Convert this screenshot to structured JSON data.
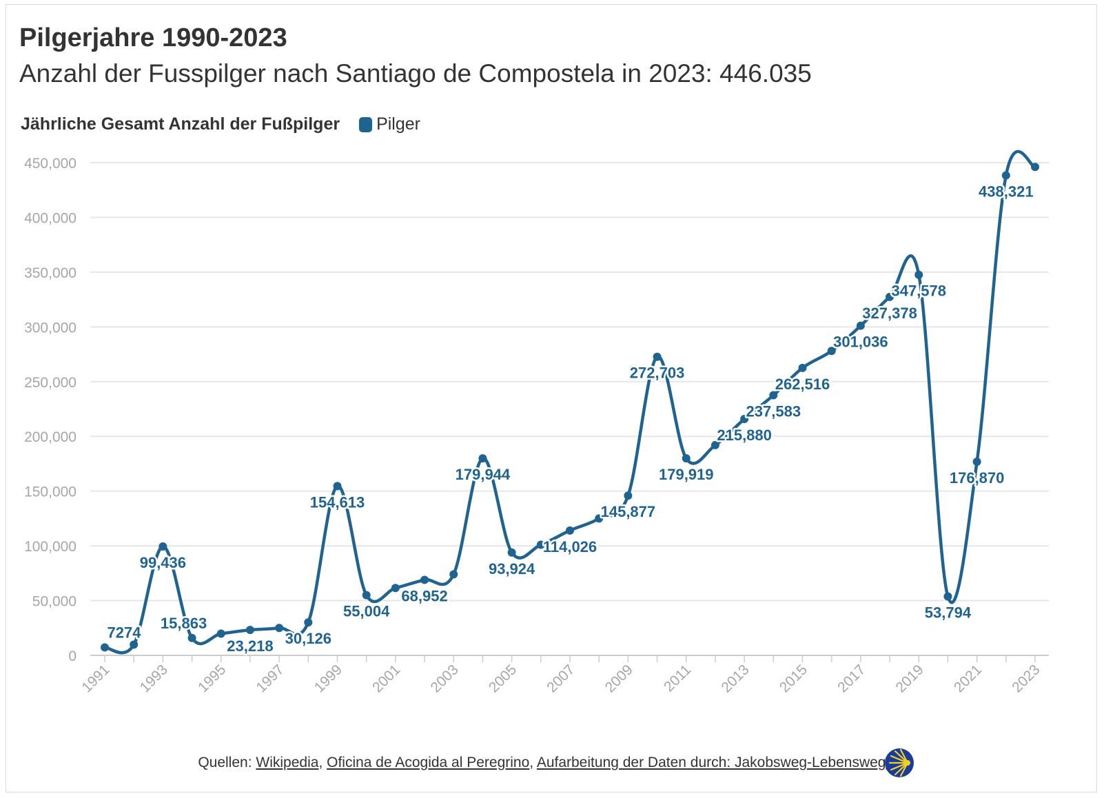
{
  "title": "Pilgerjahre 1990-2023",
  "subtitle": "Anzahl der Fusspilger nach Santiago de Compostela in 2023: 446.035",
  "legend": {
    "title": "Jährliche Gesamt Anzahl der Fußpilger",
    "series_label": "Pilger"
  },
  "colors": {
    "series": "#1f6390",
    "grid": "#e6e6e6",
    "axis_text": "#a6a6a6"
  },
  "chart_data": {
    "type": "line",
    "series": [
      {
        "name": "Pilger",
        "x": [
          1991,
          1992,
          1993,
          1994,
          1995,
          1996,
          1997,
          1998,
          1999,
          2000,
          2001,
          2002,
          2003,
          2004,
          2005,
          2006,
          2007,
          2008,
          2009,
          2010,
          2011,
          2012,
          2013,
          2014,
          2015,
          2016,
          2017,
          2018,
          2019,
          2020,
          2021,
          2022,
          2023
        ],
        "values": [
          7274,
          9800,
          99436,
          15863,
          19800,
          23218,
          25000,
          30126,
          154613,
          55004,
          61500,
          68952,
          74000,
          179944,
          93924,
          101000,
          114026,
          125000,
          145877,
          272703,
          179919,
          192000,
          215880,
          237583,
          262516,
          278000,
          301036,
          327378,
          347578,
          53794,
          176870,
          438321,
          446035
        ],
        "labels": [
          "7274",
          "",
          "99,436",
          "15,863",
          "",
          "23,218",
          "",
          "30,126",
          "154,613",
          "55,004",
          "",
          "68,952",
          "",
          "179,944",
          "93,924",
          "",
          "114,026",
          "",
          "145,877",
          "272,703",
          "179,919",
          "",
          "215,880",
          "237,583",
          "262,516",
          "",
          "301,036",
          "327,378",
          "347,578",
          "53,794",
          "176,870",
          "438,321",
          ""
        ]
      }
    ],
    "ylim": [
      0,
      450000
    ],
    "y_ticks": [
      "0",
      "50,000",
      "100,000",
      "150,000",
      "200,000",
      "250,000",
      "300,000",
      "350,000",
      "400,000",
      "450,000"
    ],
    "x_ticks": [
      "1991",
      "1993",
      "1995",
      "1997",
      "1999",
      "2001",
      "2003",
      "2005",
      "2007",
      "2009",
      "2011",
      "2013",
      "2015",
      "2017",
      "2019",
      "2021",
      "2023"
    ],
    "grid": true,
    "legend_position": "top-left"
  },
  "footer": {
    "prefix": "Quellen: ",
    "link1": "Wikipedia",
    "sep1": ", ",
    "link2": "Oficina de Acogida al Peregrino",
    "sep2": ", ",
    "link3": "Aufarbeitung der Daten durch: Jakobsweg-Lebensweg.de"
  },
  "logo_icon": "scallop-shell-sun-icon"
}
